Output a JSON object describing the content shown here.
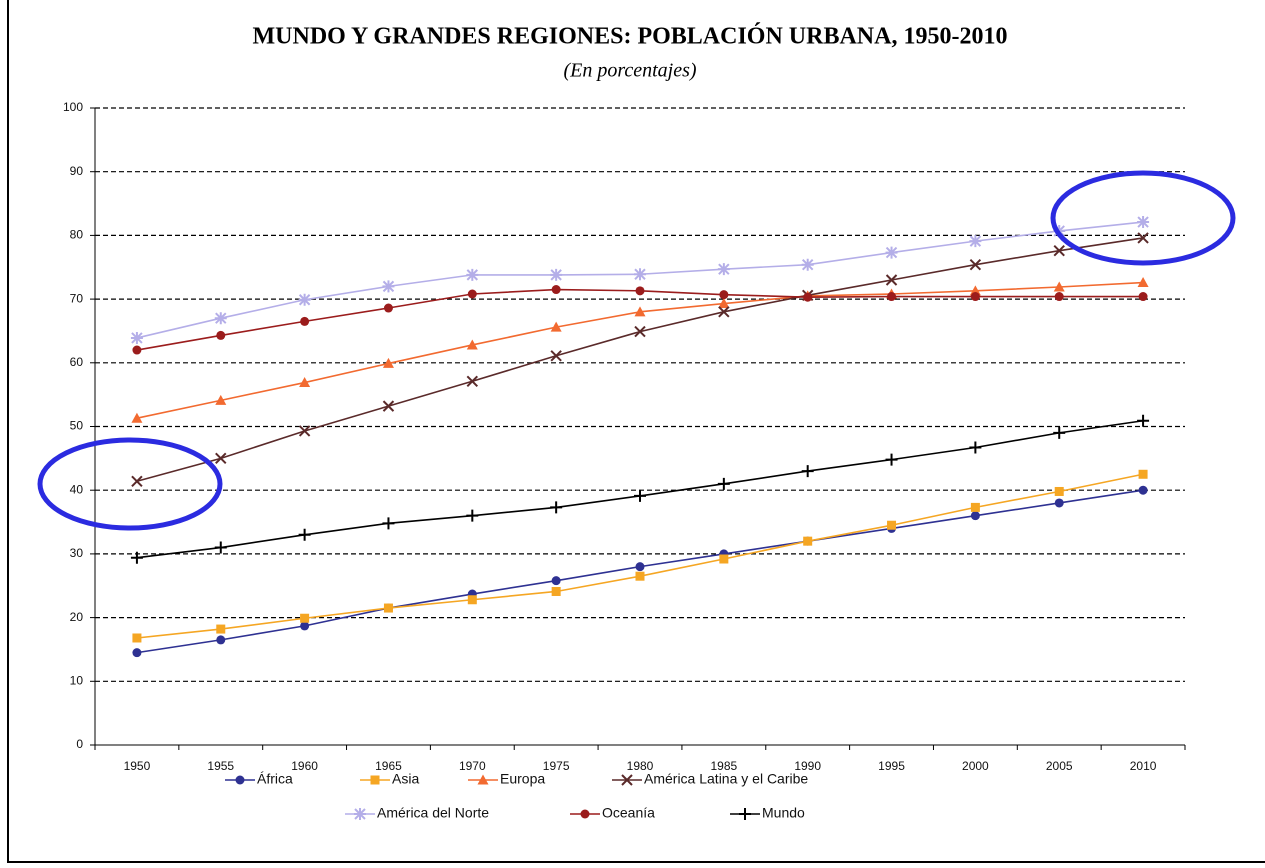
{
  "chart_data": {
    "type": "line",
    "title": "MUNDO Y GRANDES REGIONES: POBLACIÓN URBANA, 1950-2010",
    "subtitle": "(En porcentajes)",
    "categories": [
      "1950",
      "1955",
      "1960",
      "1965",
      "1970",
      "1975",
      "1980",
      "1985",
      "1990",
      "1995",
      "2000",
      "2005",
      "2010"
    ],
    "ylim": [
      0,
      100
    ],
    "yticks": [
      0,
      10,
      20,
      30,
      40,
      50,
      60,
      70,
      80,
      90,
      100
    ],
    "grid": true,
    "legend": "bottom",
    "series": [
      {
        "name": "África",
        "color": "#2e3192",
        "marker": "circle",
        "values": [
          14.5,
          16.5,
          18.7,
          21.5,
          23.7,
          25.8,
          28,
          30,
          32,
          34,
          36,
          38,
          40
        ]
      },
      {
        "name": "Asia",
        "color": "#f5a623",
        "marker": "square",
        "values": [
          16.8,
          18.2,
          19.9,
          21.5,
          22.8,
          24.1,
          26.5,
          29.2,
          32,
          34.5,
          37.3,
          39.8,
          42.5
        ]
      },
      {
        "name": "Europa",
        "color": "#f26a30",
        "marker": "triangle",
        "values": [
          51.3,
          54.1,
          56.9,
          59.9,
          62.8,
          65.6,
          68,
          69.3,
          70.5,
          70.8,
          71.3,
          71.9,
          72.6
        ]
      },
      {
        "name": "América Latina y el Caribe",
        "color": "#5a2a2a",
        "marker": "x",
        "values": [
          41.4,
          45,
          49.3,
          53.2,
          57.1,
          61.1,
          64.9,
          68,
          70.6,
          73,
          75.4,
          77.6,
          79.6
        ]
      },
      {
        "name": "América del Norte",
        "color": "#b4aee8",
        "marker": "star",
        "values": [
          63.9,
          67,
          69.9,
          72,
          73.8,
          73.8,
          73.9,
          74.7,
          75.4,
          77.3,
          79.1,
          80.7,
          82.1
        ]
      },
      {
        "name": "Oceanía",
        "color": "#9b1c1c",
        "marker": "circle",
        "values": [
          62,
          64.3,
          66.5,
          68.6,
          70.8,
          71.5,
          71.3,
          70.7,
          70.3,
          70.4,
          70.4,
          70.4,
          70.4
        ]
      },
      {
        "name": "Mundo",
        "color": "#000000",
        "marker": "plus",
        "values": [
          29.4,
          31,
          33,
          34.8,
          36,
          37.3,
          39.1,
          41,
          43,
          44.8,
          46.7,
          49,
          50.9
        ]
      }
    ]
  }
}
